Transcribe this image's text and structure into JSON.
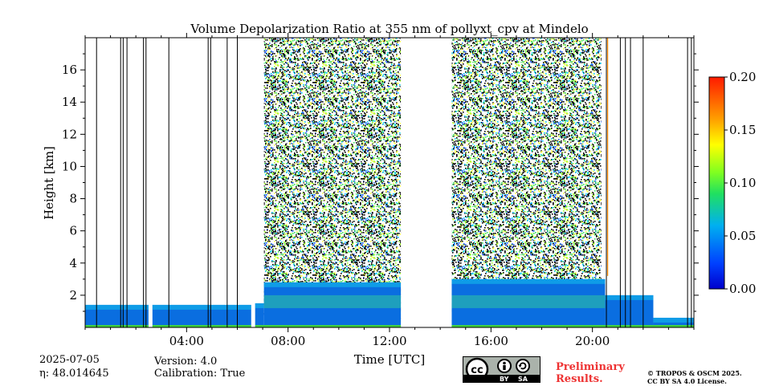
{
  "chart_data": {
    "type": "heatmap",
    "title": "Volume Depolarization Ratio at 355 nm of pollyxt_cpv at Mindelo",
    "xlabel": "Time [UTC]",
    "ylabel": "Height [km]",
    "xlim": [
      0,
      24
    ],
    "ylim": [
      0,
      18
    ],
    "x_ticks": [
      4,
      8,
      12,
      16,
      20
    ],
    "x_tick_labels": [
      "04:00",
      "08:00",
      "12:00",
      "16:00",
      "20:00"
    ],
    "y_ticks": [
      2,
      4,
      6,
      8,
      10,
      12,
      14,
      16
    ],
    "y_tick_labels": [
      "2",
      "4",
      "6",
      "8",
      "10",
      "12",
      "14",
      "16"
    ],
    "colorbar": {
      "range": [
        0.0,
        0.2
      ],
      "ticks": [
        0.0,
        0.05,
        0.1,
        0.15,
        0.2
      ],
      "tick_labels": [
        "0.00",
        "0.05",
        "0.10",
        "0.15",
        "0.20"
      ],
      "colormap": "jet"
    },
    "no_data_intervals": [
      [
        2.5,
        2.65
      ],
      [
        6.55,
        6.7
      ],
      [
        12.45,
        14.45
      ]
    ],
    "noise_intervals": [
      [
        7.05,
        12.45
      ],
      [
        14.45,
        20.35
      ]
    ],
    "boundary_layer": [
      {
        "start": 0.0,
        "end": 2.5,
        "top_km": 1.4
      },
      {
        "start": 2.65,
        "end": 6.55,
        "top_km": 1.4
      },
      {
        "start": 6.7,
        "end": 7.05,
        "top_km": 1.5
      },
      {
        "start": 7.05,
        "end": 12.45,
        "top_km": 2.8
      },
      {
        "start": 14.45,
        "end": 20.5,
        "top_km": 3.0
      },
      {
        "start": 20.5,
        "end": 22.4,
        "top_km": 2.0
      },
      {
        "start": 22.4,
        "end": 24.0,
        "top_km": 0.6
      }
    ],
    "orange_trace_time": 20.6,
    "vertical_lines": [
      0.45,
      1.4,
      1.5,
      1.65,
      2.3,
      2.4,
      3.3,
      4.85,
      4.95,
      5.6,
      6.0,
      20.55,
      21.1,
      21.3,
      21.5,
      22.0,
      23.75,
      23.9
    ]
  },
  "footer": {
    "date": "2025-07-05",
    "eta_label": "η: 48.014645",
    "version": "Version: 4.0",
    "calibration": "Calibration: True",
    "preliminary_line1": "Preliminary",
    "preliminary_line2": "Results.",
    "copyright_line1": "© TROPOS & OSCM 2025.",
    "copyright_line2": "CC BY SA 4.0 License.",
    "cc_badge": {
      "cc": "cc",
      "by": "BY",
      "sa": "SA"
    }
  }
}
